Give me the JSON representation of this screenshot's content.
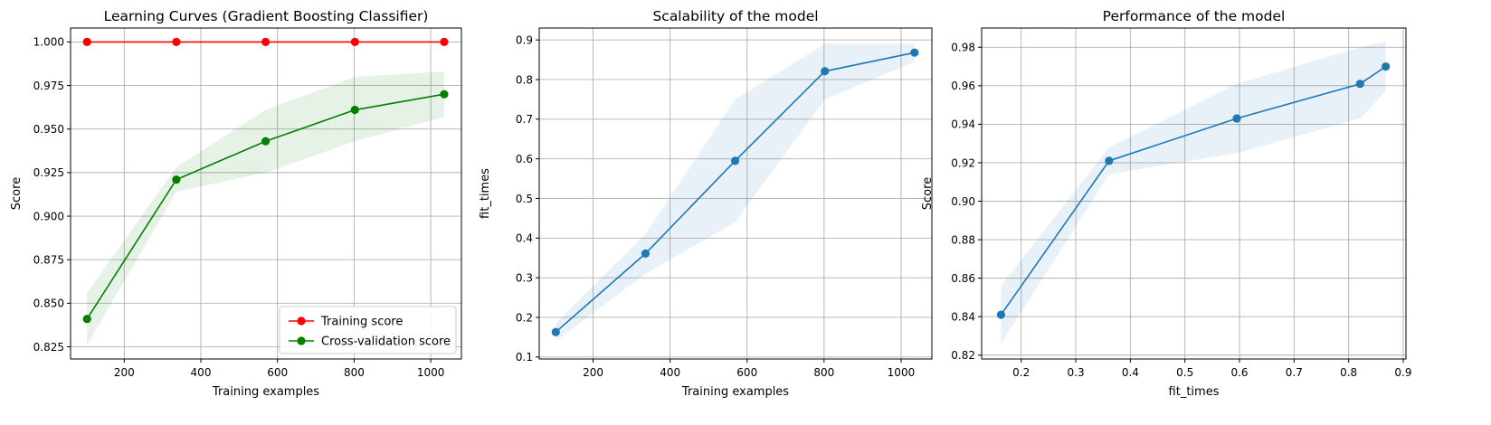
{
  "chart_data": [
    {
      "type": "line",
      "title": "Learning Curves (Gradient Boosting Classifier)",
      "xlabel": "Training examples",
      "ylabel": "Score",
      "xlim": [
        60,
        1080
      ],
      "ylim": [
        0.818,
        1.008
      ],
      "xticks": [
        200,
        400,
        600,
        800,
        1000
      ],
      "xtick_labels": [
        "200",
        "400",
        "600",
        "800",
        "1000"
      ],
      "yticks": [
        0.825,
        0.85,
        0.875,
        0.9,
        0.925,
        0.95,
        0.975,
        1.0
      ],
      "ytick_labels": [
        "0.825",
        "0.850",
        "0.875",
        "0.900",
        "0.925",
        "0.950",
        "0.975",
        "1.000"
      ],
      "grid": true,
      "legend_position": "lower-right",
      "series": [
        {
          "name": "Training score",
          "color": "#ff0000",
          "x": [
            103,
            336,
            569,
            802,
            1035
          ],
          "y": [
            1.0,
            1.0,
            1.0,
            1.0,
            1.0
          ],
          "y_lower": [
            1.0,
            1.0,
            1.0,
            1.0,
            1.0
          ],
          "y_upper": [
            1.0,
            1.0,
            1.0,
            1.0,
            1.0
          ]
        },
        {
          "name": "Cross-validation score",
          "color": "#008000",
          "x": [
            103,
            336,
            569,
            802,
            1035
          ],
          "y": [
            0.841,
            0.921,
            0.943,
            0.961,
            0.97
          ],
          "y_lower": [
            0.826,
            0.914,
            0.925,
            0.943,
            0.957
          ],
          "y_upper": [
            0.856,
            0.928,
            0.961,
            0.98,
            0.983
          ]
        }
      ]
    },
    {
      "type": "line",
      "title": "Scalability of the model",
      "xlabel": "Training examples",
      "ylabel": "fit_times",
      "xlim": [
        60,
        1080
      ],
      "ylim": [
        0.095,
        0.93
      ],
      "xticks": [
        200,
        400,
        600,
        800,
        1000
      ],
      "xtick_labels": [
        "200",
        "400",
        "600",
        "800",
        "1000"
      ],
      "yticks": [
        0.1,
        0.2,
        0.3,
        0.4,
        0.5,
        0.6,
        0.7,
        0.8,
        0.9
      ],
      "ytick_labels": [
        "0.1",
        "0.2",
        "0.3",
        "0.4",
        "0.5",
        "0.6",
        "0.7",
        "0.8",
        "0.9"
      ],
      "grid": true,
      "series": [
        {
          "color": "#1f77b4",
          "x": [
            103,
            336,
            569,
            802,
            1035
          ],
          "y": [
            0.163,
            0.361,
            0.595,
            0.821,
            0.868
          ],
          "y_lower": [
            0.14,
            0.31,
            0.44,
            0.75,
            0.845
          ],
          "y_upper": [
            0.185,
            0.41,
            0.75,
            0.89,
            0.89
          ]
        }
      ]
    },
    {
      "type": "line",
      "title": "Performance of the model",
      "xlabel": "fit_times",
      "ylabel": "Score",
      "xlim": [
        0.1275,
        0.905
      ],
      "ylim": [
        0.818,
        0.99
      ],
      "xticks": [
        0.2,
        0.3,
        0.4,
        0.5,
        0.6,
        0.7,
        0.8,
        0.9
      ],
      "xtick_labels": [
        "0.2",
        "0.3",
        "0.4",
        "0.5",
        "0.6",
        "0.7",
        "0.8",
        "0.9"
      ],
      "yticks": [
        0.82,
        0.84,
        0.86,
        0.88,
        0.9,
        0.92,
        0.94,
        0.96,
        0.98
      ],
      "ytick_labels": [
        "0.82",
        "0.84",
        "0.86",
        "0.88",
        "0.90",
        "0.92",
        "0.94",
        "0.96",
        "0.98"
      ],
      "grid": true,
      "series": [
        {
          "color": "#1f77b4",
          "x": [
            0.163,
            0.361,
            0.595,
            0.821,
            0.868
          ],
          "y": [
            0.841,
            0.921,
            0.943,
            0.961,
            0.97
          ],
          "y_lower": [
            0.826,
            0.914,
            0.925,
            0.943,
            0.957
          ],
          "y_upper": [
            0.856,
            0.928,
            0.961,
            0.98,
            0.983
          ]
        }
      ]
    }
  ]
}
